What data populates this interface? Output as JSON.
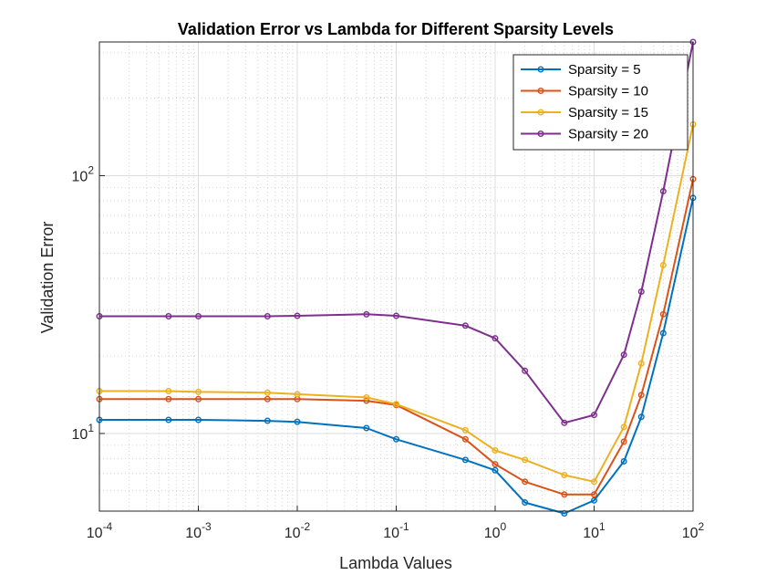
{
  "chart_data": {
    "type": "line",
    "title": "Validation Error vs Lambda for Different Sparsity Levels",
    "xlabel": "Lambda Values",
    "ylabel": "Validation Error",
    "xscale": "log",
    "yscale": "log",
    "xlim": [
      0.0001,
      100
    ],
    "ylim": [
      5,
      330
    ],
    "grid": true,
    "minor_grid": true,
    "legend_position": "top-right",
    "x": [
      0.0001,
      0.0005,
      0.001,
      0.005,
      0.01,
      0.05,
      0.1,
      0.5,
      1,
      2,
      5,
      10,
      20,
      30,
      50,
      100
    ],
    "x_ticks": [
      {
        "base": "10",
        "exp": "-4"
      },
      {
        "base": "10",
        "exp": "-3"
      },
      {
        "base": "10",
        "exp": "-2"
      },
      {
        "base": "10",
        "exp": "-1"
      },
      {
        "base": "10",
        "exp": "0"
      },
      {
        "base": "10",
        "exp": "1"
      },
      {
        "base": "10",
        "exp": "2"
      }
    ],
    "y_ticks": [
      {
        "base": "10",
        "exp": "1"
      },
      {
        "base": "10",
        "exp": "2"
      }
    ],
    "series": [
      {
        "name": "Sparsity = 5",
        "color": "#0072BD",
        "values": [
          11.3,
          11.3,
          11.3,
          11.2,
          11.1,
          10.5,
          9.5,
          7.9,
          7.2,
          5.4,
          4.9,
          5.5,
          7.8,
          11.6,
          24.5,
          82
        ]
      },
      {
        "name": "Sparsity = 10",
        "color": "#D95319",
        "values": [
          13.6,
          13.6,
          13.6,
          13.6,
          13.6,
          13.4,
          12.9,
          9.5,
          7.6,
          6.5,
          5.8,
          5.8,
          9.3,
          14.1,
          29,
          97
        ]
      },
      {
        "name": "Sparsity = 15",
        "color": "#EDB120",
        "values": [
          14.6,
          14.6,
          14.5,
          14.4,
          14.2,
          13.8,
          13.0,
          10.3,
          8.6,
          7.9,
          6.9,
          6.5,
          10.6,
          18.7,
          45,
          158
        ]
      },
      {
        "name": "Sparsity = 20",
        "color": "#7E2F8E",
        "values": [
          28.5,
          28.5,
          28.5,
          28.5,
          28.6,
          29.0,
          28.6,
          26.2,
          23.4,
          17.5,
          11.0,
          11.8,
          20.2,
          35.5,
          87,
          330
        ]
      }
    ]
  }
}
